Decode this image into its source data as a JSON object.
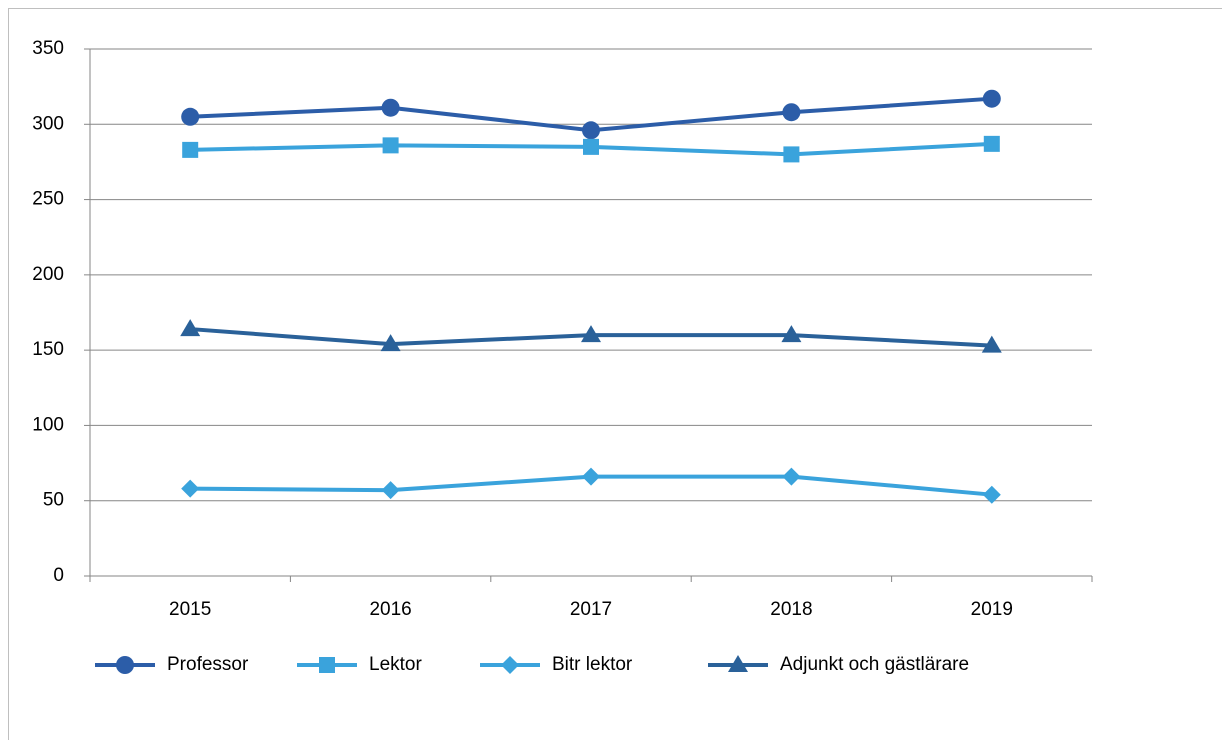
{
  "chart_data": {
    "type": "line",
    "categories": [
      "2015",
      "2016",
      "2017",
      "2018",
      "2019"
    ],
    "series": [
      {
        "name": "Professor",
        "color": "#2c5da8",
        "marker": "circle",
        "values": [
          305,
          311,
          296,
          308,
          317
        ]
      },
      {
        "name": "Lektor",
        "color": "#3aa3dc",
        "marker": "square",
        "values": [
          283,
          286,
          285,
          280,
          287
        ]
      },
      {
        "name": "Bitr lektor",
        "color": "#3aa3dc",
        "marker": "diamond",
        "values": [
          58,
          57,
          66,
          66,
          54
        ]
      },
      {
        "name": "Adjunkt och gästlärare",
        "color": "#2a6199",
        "marker": "triangle",
        "values": [
          164,
          154,
          160,
          160,
          153
        ]
      }
    ],
    "ylim": [
      0,
      350
    ],
    "yticks": [
      0,
      50,
      100,
      150,
      200,
      250,
      300,
      350
    ],
    "grid": true,
    "legend": "bottom"
  }
}
